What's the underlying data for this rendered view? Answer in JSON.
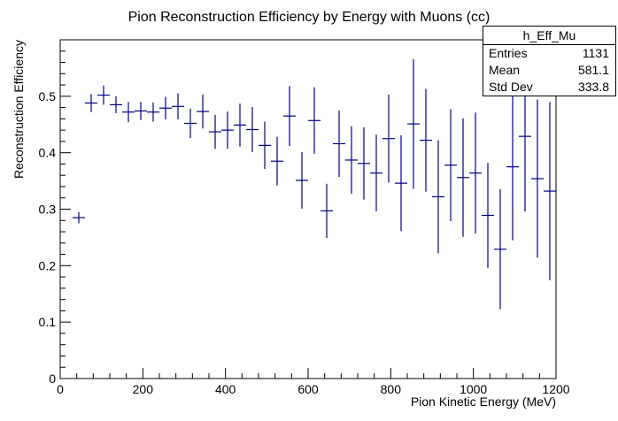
{
  "chart_data": {
    "type": "scatter",
    "title": "Pion Reconstruction Efficiency by Energy with Muons (cc)",
    "xlabel": "Pion Kinetic Energy (MeV)",
    "ylabel": "Reconstruction Efficiency",
    "xlim": [
      0,
      1200
    ],
    "ylim": [
      0,
      0.6
    ],
    "x_ticks": [
      0,
      200,
      400,
      600,
      800,
      1000,
      1200
    ],
    "y_ticks": [
      0,
      0.1,
      0.2,
      0.3,
      0.4,
      0.5
    ],
    "x_tick_labels": [
      "0",
      "200",
      "400",
      "600",
      "800",
      "1000",
      "1200"
    ],
    "y_tick_labels": [
      "0",
      "0.1",
      "0.2",
      "0.3",
      "0.4",
      "0.5"
    ],
    "bin_width": 30,
    "marker_color": "#000080",
    "series": [
      {
        "x": [
          45,
          75,
          105,
          135,
          165,
          195,
          225,
          255,
          285,
          315,
          345,
          375,
          405,
          435,
          465,
          495,
          525,
          555,
          585,
          615,
          645,
          675,
          705,
          735,
          765,
          795,
          825,
          855,
          885,
          915,
          945,
          975,
          1005,
          1035,
          1065,
          1095,
          1125,
          1155,
          1185
        ],
        "y": [
          0.285,
          0.488,
          0.502,
          0.485,
          0.472,
          0.474,
          0.472,
          0.479,
          0.482,
          0.452,
          0.473,
          0.437,
          0.44,
          0.449,
          0.441,
          0.413,
          0.385,
          0.465,
          0.351,
          0.457,
          0.297,
          0.416,
          0.387,
          0.381,
          0.364,
          0.425,
          0.346,
          0.451,
          0.422,
          0.322,
          0.378,
          0.356,
          0.364,
          0.289,
          0.229,
          0.375,
          0.429,
          0.354,
          0.332
        ],
        "err": [
          0.01,
          0.016,
          0.017,
          0.015,
          0.018,
          0.016,
          0.017,
          0.02,
          0.023,
          0.026,
          0.03,
          0.03,
          0.033,
          0.038,
          0.04,
          0.042,
          0.043,
          0.053,
          0.05,
          0.059,
          0.048,
          0.059,
          0.06,
          0.064,
          0.068,
          0.078,
          0.085,
          0.115,
          0.091,
          0.1,
          0.099,
          0.105,
          0.107,
          0.093,
          0.106,
          0.13,
          0.133,
          0.14,
          0.158
        ]
      }
    ]
  },
  "stats": {
    "name": "h_Eff_Mu",
    "rows": [
      {
        "label": "Entries",
        "value": "1131"
      },
      {
        "label": "Mean",
        "value": "581.1"
      },
      {
        "label": "Std Dev",
        "value": "333.8"
      }
    ]
  }
}
